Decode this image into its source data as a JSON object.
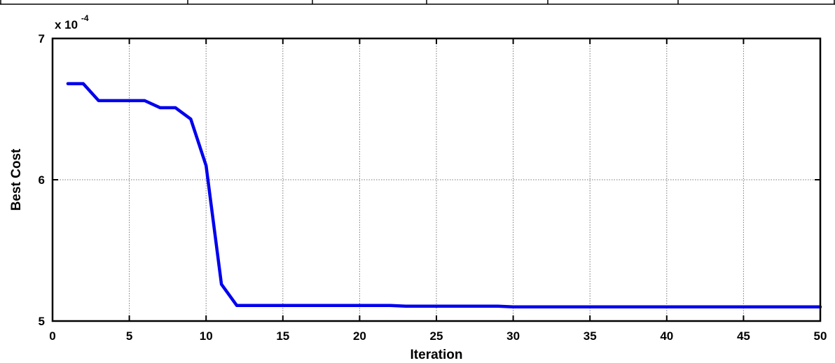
{
  "chart_data": {
    "type": "line",
    "title": "",
    "xlabel": "Iteration",
    "ylabel": "Best Cost",
    "y_multiplier": {
      "base": "x 10",
      "exponent": "-4"
    },
    "xlim": [
      0,
      50
    ],
    "ylim": [
      5,
      7
    ],
    "x_ticks": [
      0,
      5,
      10,
      15,
      20,
      25,
      30,
      35,
      40,
      45,
      50
    ],
    "x_tick_labels": [
      "0",
      "5",
      "10",
      "15",
      "20",
      "25",
      "30",
      "35",
      "40",
      "45",
      "50"
    ],
    "y_ticks": [
      5,
      6,
      7
    ],
    "y_tick_labels": [
      "5",
      "6",
      "7"
    ],
    "grid": true,
    "legend": "none",
    "series": [
      {
        "color": "#0000ee",
        "x": [
          1,
          2,
          3,
          4,
          5,
          6,
          7,
          8,
          9,
          10,
          11,
          12,
          13,
          14,
          15,
          16,
          17,
          18,
          19,
          20,
          21,
          22,
          23,
          24,
          25,
          26,
          27,
          28,
          29,
          30,
          31,
          32,
          33,
          34,
          35,
          36,
          37,
          38,
          39,
          40,
          41,
          42,
          43,
          44,
          45,
          46,
          47,
          48,
          49,
          50
        ],
        "y": [
          6.68,
          6.68,
          6.56,
          6.56,
          6.56,
          6.56,
          6.51,
          6.51,
          6.43,
          6.1,
          5.26,
          5.11,
          5.11,
          5.11,
          5.11,
          5.11,
          5.11,
          5.11,
          5.11,
          5.11,
          5.11,
          5.11,
          5.105,
          5.105,
          5.105,
          5.105,
          5.105,
          5.105,
          5.105,
          5.1,
          5.1,
          5.1,
          5.1,
          5.1,
          5.1,
          5.1,
          5.1,
          5.1,
          5.1,
          5.1,
          5.1,
          5.1,
          5.1,
          5.1,
          5.1,
          5.1,
          5.1,
          5.1,
          5.1,
          5.1
        ]
      }
    ]
  }
}
